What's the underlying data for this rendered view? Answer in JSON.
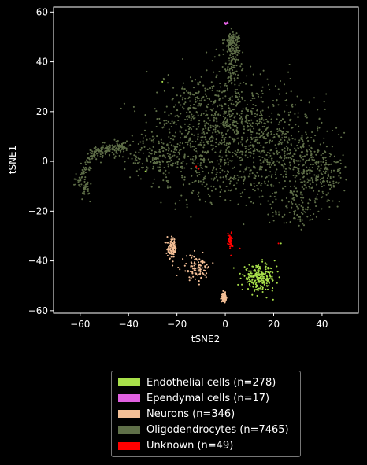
{
  "chart_data": {
    "type": "scatter",
    "title": "",
    "xlabel": "tSNE2",
    "ylabel": "tSNE1",
    "xlim": [
      -71,
      55
    ],
    "ylim": [
      -61,
      62
    ],
    "xticks": [
      -60,
      -40,
      -20,
      0,
      20,
      40
    ],
    "yticks": [
      -60,
      -40,
      -20,
      0,
      20,
      40,
      60
    ],
    "xtick_labels": [
      "−60",
      "−40",
      "−20",
      "0",
      "20",
      "40"
    ],
    "ytick_labels": [
      "−60",
      "−40",
      "−20",
      "0",
      "20",
      "40",
      "60"
    ],
    "legend_position": "bottom-center outside",
    "series": [
      {
        "name": "Endothelial cells (n=278)",
        "color": "#a8e04a",
        "count": 278,
        "clusters": [
          {
            "center": [
              14,
              -47
            ],
            "spread": [
              3.5,
              2.5
            ]
          }
        ],
        "outliers": [
          [
            -26,
            32
          ],
          [
            23,
            -33
          ],
          [
            -33,
            -4
          ]
        ]
      },
      {
        "name": "Ependymal cells (n=17)",
        "color": "#e060e0",
        "count": 17,
        "clusters": [
          {
            "center": [
              0.5,
              55.5
            ],
            "spread": [
              0.3,
              0.2
            ]
          }
        ],
        "outliers": []
      },
      {
        "name": "Neurons (n=346)",
        "color": "#f4bf96",
        "count": 346,
        "clusters": [
          {
            "center": [
              -22,
              -35
            ],
            "spread": [
              1.0,
              2.0
            ]
          },
          {
            "center": [
              -12,
              -43
            ],
            "spread": [
              3.0,
              2.5
            ]
          },
          {
            "center": [
              -0.5,
              -54.5
            ],
            "spread": [
              0.4,
              0.8
            ]
          }
        ],
        "outliers": []
      },
      {
        "name": "Oligodendrocytes (n=7465)",
        "color": "#5f6f48",
        "count": 7465,
        "clusters": [
          {
            "center": [
              3,
              48
            ],
            "spread": [
              1.6,
              2.0
            ]
          }
        ],
        "outliers": []
      },
      {
        "name": "Unknown (n=49)",
        "color": "#ff0000",
        "count": 49,
        "clusters": [
          {
            "center": [
              2,
              -32
            ],
            "spread": [
              0.5,
              1.8
            ]
          }
        ],
        "outliers": [
          [
            6,
            -35
          ],
          [
            -12,
            -2
          ],
          [
            -11,
            -3
          ],
          [
            22,
            -33
          ]
        ]
      }
    ]
  }
}
